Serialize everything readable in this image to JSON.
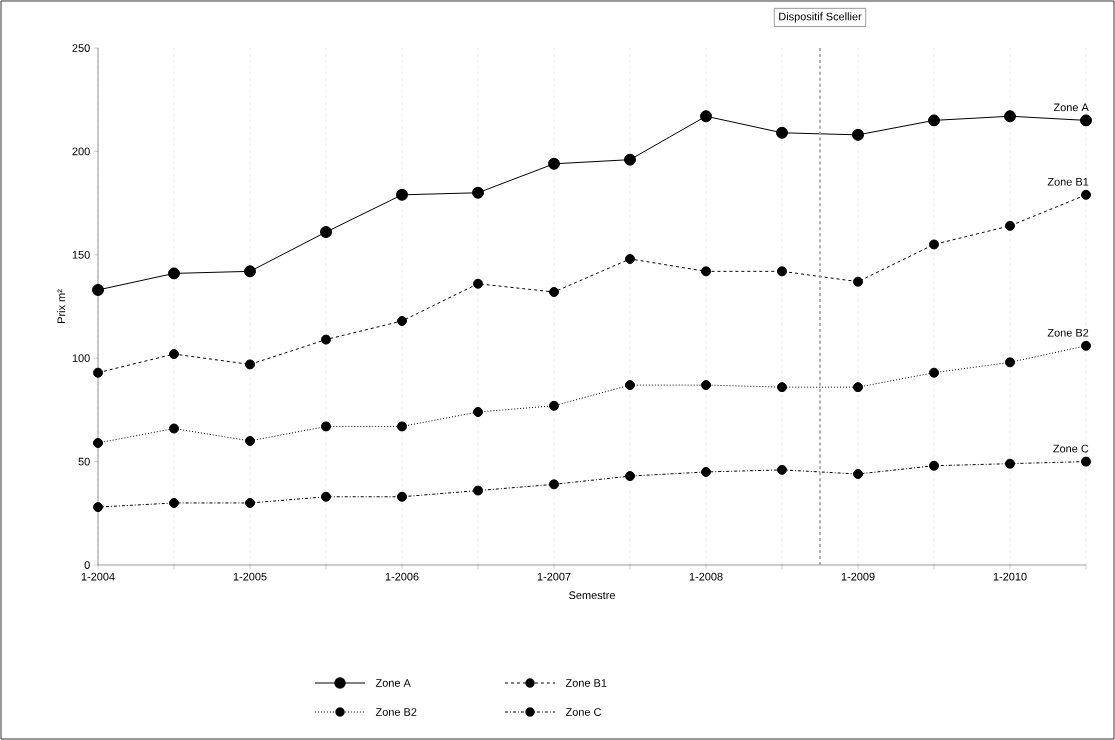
{
  "chart_data": {
    "type": "line",
    "xlabel": "Semestre",
    "ylabel": "Prix m²",
    "categories": [
      "1-2004",
      null,
      "1-2005",
      null,
      "1-2006",
      null,
      "1-2007",
      null,
      "1-2008",
      null,
      "1-2009",
      null,
      "1-2010",
      null
    ],
    "series": [
      {
        "name": "Zone A",
        "color": "#000000",
        "line_style": "solid",
        "marker": "circle",
        "values": [
          133,
          141,
          142,
          161,
          179,
          180,
          194,
          196,
          217,
          209,
          208,
          215,
          217,
          215
        ]
      },
      {
        "name": "Zone B1",
        "color": "#000000",
        "line_style": "dashed",
        "marker": "circle",
        "values": [
          93,
          102,
          97,
          109,
          118,
          136,
          132,
          148,
          142,
          142,
          137,
          155,
          164,
          179
        ]
      },
      {
        "name": "Zone B2",
        "color": "#000000",
        "line_style": "dotted",
        "marker": "circle",
        "values": [
          59,
          66,
          60,
          67,
          67,
          74,
          77,
          87,
          87,
          86,
          86,
          93,
          98,
          106
        ]
      },
      {
        "name": "Zone C",
        "color": "#000000",
        "line_style": "dashdot",
        "marker": "circle",
        "values": [
          28,
          30,
          30,
          33,
          33,
          36,
          39,
          43,
          45,
          46,
          44,
          48,
          49,
          50
        ]
      }
    ],
    "ylim": [
      0,
      250
    ],
    "yticks": [
      0,
      50,
      100,
      150,
      200,
      250
    ],
    "grid": "x",
    "legend": "bottom",
    "annotations": [
      "Dispositif Scellier"
    ]
  }
}
